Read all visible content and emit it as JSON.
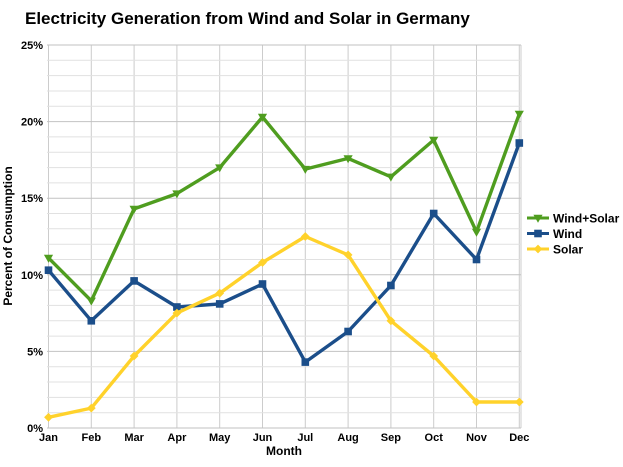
{
  "chart_data": {
    "type": "line",
    "title": "Electricity Generation from Wind and Solar in Germany",
    "xlabel": "Month",
    "ylabel": "Percent of Consumption",
    "ylim": [
      0,
      25
    ],
    "y_major_ticks": [
      0,
      5,
      10,
      15,
      20,
      25
    ],
    "y_tick_labels": [
      "0%",
      "5%",
      "10%",
      "15%",
      "20%",
      "25%"
    ],
    "y_minor_step": 1,
    "grid": true,
    "legend_position": "right",
    "categories": [
      "Jan",
      "Feb",
      "Mar",
      "Apr",
      "May",
      "Jun",
      "Jul",
      "Aug",
      "Sep",
      "Oct",
      "Nov",
      "Dec"
    ],
    "series": [
      {
        "name": "Wind+Solar",
        "color": "#4f9d1f",
        "marker": "triangle-down",
        "values": [
          11.1,
          8.3,
          14.3,
          15.3,
          17.0,
          20.3,
          16.9,
          17.6,
          16.4,
          18.8,
          12.8,
          20.5
        ]
      },
      {
        "name": "Wind",
        "color": "#1b4e8a",
        "marker": "square",
        "values": [
          10.3,
          7.0,
          9.6,
          7.9,
          8.1,
          9.4,
          4.3,
          6.3,
          9.3,
          14.0,
          11.0,
          18.6
        ]
      },
      {
        "name": "Solar",
        "color": "#ffd22b",
        "marker": "diamond",
        "values": [
          0.7,
          1.3,
          4.7,
          7.5,
          8.8,
          10.8,
          12.5,
          11.3,
          7.0,
          4.7,
          1.7,
          1.7
        ]
      }
    ],
    "colors": {
      "grid_major": "#c2c2c2",
      "grid_minor": "#e1e1e1",
      "grid_vertical": "#cccccc",
      "text": "#000000",
      "background": "#ffffff"
    }
  }
}
